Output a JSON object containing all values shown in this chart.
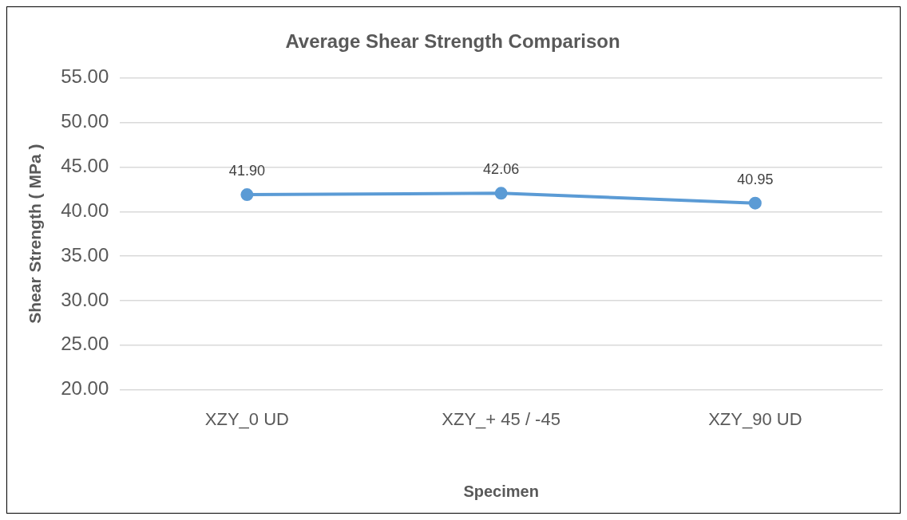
{
  "chart_data": {
    "type": "line",
    "title": "Average Shear Strength Comparison",
    "xlabel": "Specimen",
    "ylabel": "Shear Strength ( MPa )",
    "categories": [
      "XZY_0 UD",
      "XZY_+ 45 / -45",
      "XZY_90 UD"
    ],
    "series": [
      {
        "color": "#5b9bd5",
        "values": [
          41.9,
          42.06,
          40.95
        ],
        "value_labels": [
          "41.90",
          "42.06",
          "40.95"
        ]
      }
    ],
    "ylim": [
      20,
      55
    ],
    "yticks": [
      {
        "value": 20,
        "label": "20.00"
      },
      {
        "value": 25,
        "label": "25.00"
      },
      {
        "value": 30,
        "label": "30.00"
      },
      {
        "value": 35,
        "label": "35.00"
      },
      {
        "value": 40,
        "label": "40.00"
      },
      {
        "value": 45,
        "label": "45.00"
      },
      {
        "value": 50,
        "label": "50.00"
      },
      {
        "value": 55,
        "label": "55.00"
      }
    ],
    "grid": "y",
    "legend": false,
    "marker": "circle",
    "line_style": "solid"
  }
}
